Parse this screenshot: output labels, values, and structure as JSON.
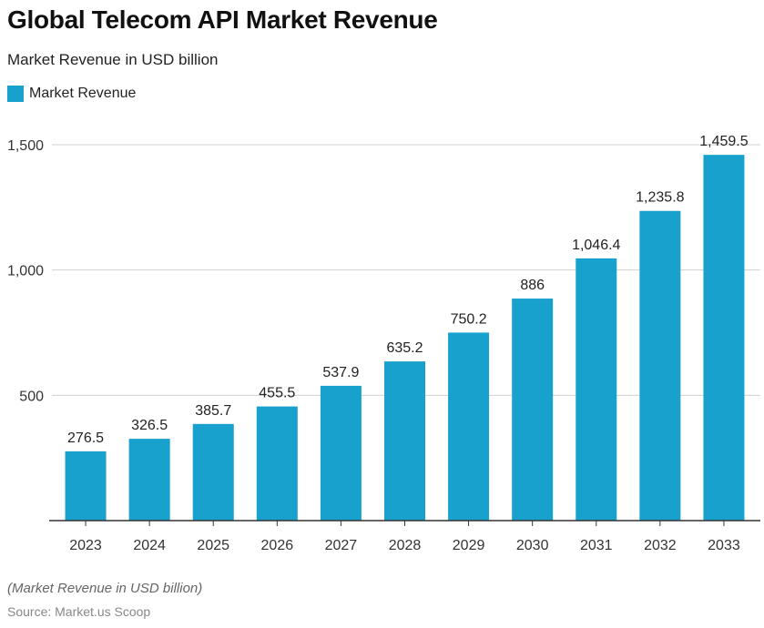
{
  "chart_data": {
    "type": "bar",
    "title": "Global Telecom API Market Revenue",
    "subtitle": "Market Revenue in USD billion",
    "categories": [
      "2023",
      "2024",
      "2025",
      "2026",
      "2027",
      "2028",
      "2029",
      "2030",
      "2031",
      "2032",
      "2033"
    ],
    "series": [
      {
        "name": "Market Revenue",
        "values": [
          276.5,
          326.5,
          385.7,
          455.5,
          537.9,
          635.2,
          750.2,
          886,
          1046.4,
          1235.8,
          1459.5
        ],
        "color": "#18a1cd"
      }
    ],
    "data_labels": [
      "276.5",
      "326.5",
      "385.7",
      "455.5",
      "537.9",
      "635.2",
      "750.2",
      "886",
      "1,046.4",
      "1,235.8",
      "1,459.5"
    ],
    "yticks": [
      500,
      1000,
      1500
    ],
    "ytick_labels": [
      "500",
      "1,000",
      "1,500"
    ],
    "ylim": [
      0,
      1500
    ],
    "grid": true,
    "legend_position": "top-left",
    "xlabel": "",
    "ylabel": ""
  },
  "footer": {
    "note": "(Market Revenue in USD billion)",
    "source": "Source: Market.us Scoop"
  }
}
